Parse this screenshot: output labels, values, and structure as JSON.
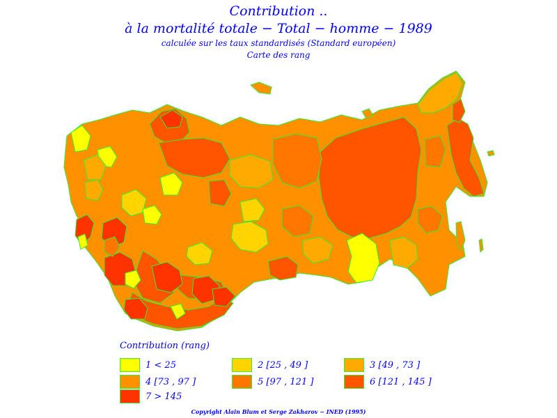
{
  "title": {
    "line1": "Contribution ..",
    "line2": "à la mortalité totale − Total − homme − 1989",
    "line3": "calculée sur les taux standardisés (Standard européen)",
    "line4": "Carte des rang"
  },
  "legend": {
    "title": "Contribution (rang)",
    "items": [
      {
        "label": "1 < 25",
        "color": "#ffff00"
      },
      {
        "label": "2 [25 , 49 ]",
        "color": "#ffd400"
      },
      {
        "label": "3 [49 , 73 ]",
        "color": "#ffaa00"
      },
      {
        "label": "4 [73 , 97 ]",
        "color": "#ff9000"
      },
      {
        "label": "5 [97 , 121 ]",
        "color": "#ff7700"
      },
      {
        "label": "6 [121 , 145 ]",
        "color": "#ff5500"
      },
      {
        "label": "7 > 145",
        "color": "#ff3300"
      }
    ]
  },
  "colors": {
    "text": "#0000ff",
    "border": "#33ee33",
    "background": "#ffffff"
  },
  "footer": "Copyright Alain Blum et Serge Zakharov − INED (1995)"
}
